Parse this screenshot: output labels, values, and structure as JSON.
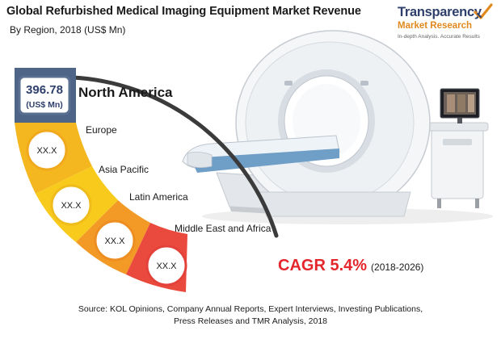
{
  "header": {
    "title": "Global Refurbished Medical Imaging Equipment Market Revenue",
    "subtitle": "By Region, 2018 (US$ Mn)"
  },
  "logo": {
    "name": "Transparency",
    "name2": "Market Research",
    "tagline": "In-depth Analysis. Accurate Results"
  },
  "chart_data": {
    "type": "table",
    "title": "Global Refurbished Medical Imaging Equipment Market Revenue",
    "subtitle": "By Region, 2018 (US$ Mn)",
    "categories": [
      "North America",
      "Europe",
      "Asia Pacific",
      "Latin America",
      "Middle East and Africa"
    ],
    "value_labels": [
      "396.78",
      "XX.X",
      "XX.X",
      "XX.X",
      "XX.X"
    ],
    "series": [
      {
        "values": [
          396.78,
          null,
          null,
          null,
          null
        ]
      }
    ],
    "unit_label": "(US$ Mn)",
    "colors": [
      "#4f6588",
      "#f4b720",
      "#f7ca1c",
      "#f39a26",
      "#ea4a3d"
    ]
  },
  "illustration": {
    "subject": "ct-scanner-with-workstation"
  },
  "cagr": {
    "label": "CAGR 5.4%",
    "period": "(2018-2026)"
  },
  "footer": {
    "source_line1": "Source: KOL Opinions, Company Annual Reports, Expert Interviews, Investing Publications,",
    "source_line2": "Press Releases and TMR Analysis, 2018"
  }
}
